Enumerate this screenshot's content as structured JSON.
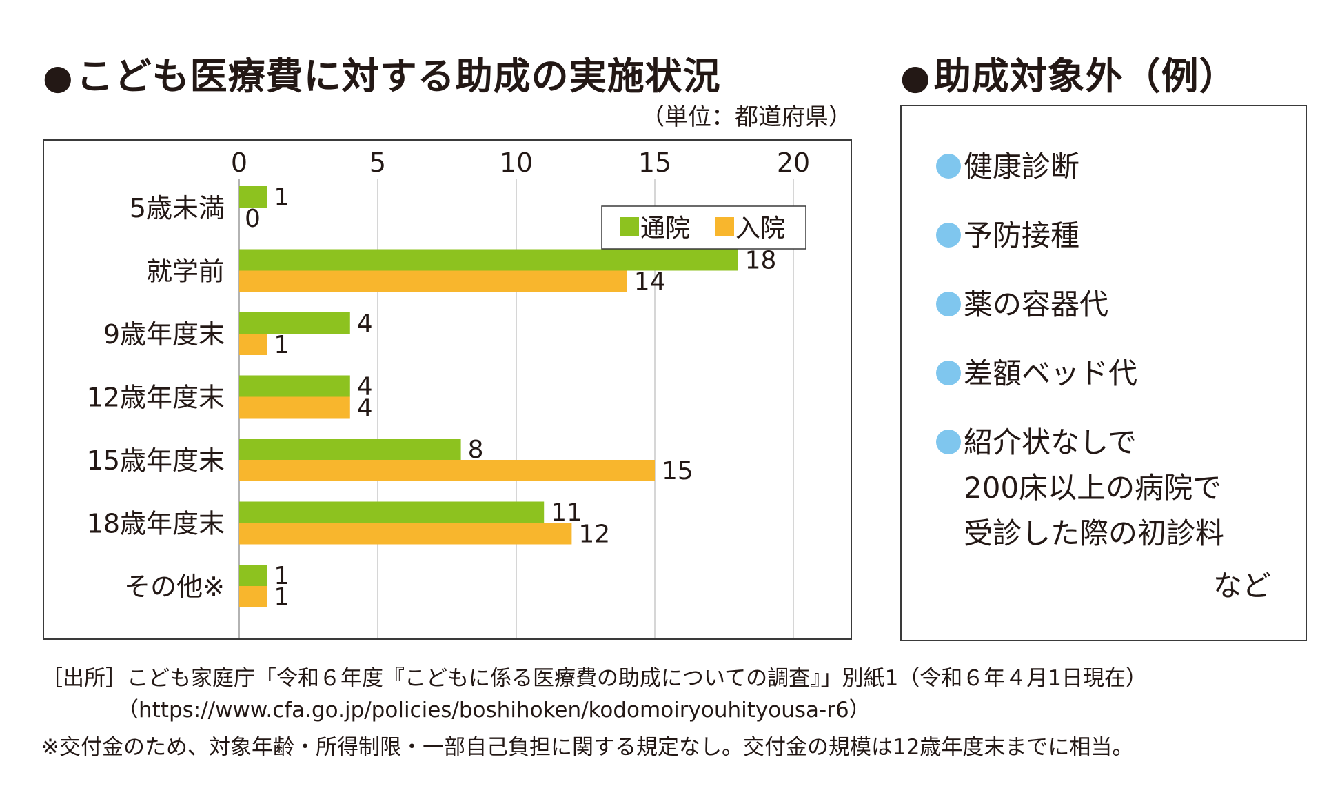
{
  "titles": {
    "chart_heading": "こども医療費に対する助成の実施状況",
    "side_heading": "助成対象外（例）",
    "bullet_mark": "●"
  },
  "unit_note": "（単位：都道府県）",
  "chart_data": {
    "type": "bar",
    "orientation": "horizontal",
    "categories": [
      "5歳未満",
      "就学前",
      "9歳年度末",
      "12歳年度末",
      "15歳年度末",
      "18歳年度末",
      "その他※"
    ],
    "series": [
      {
        "name": "通院",
        "color": "#8dc21f",
        "values": [
          1,
          18,
          4,
          4,
          8,
          11,
          1
        ]
      },
      {
        "name": "入院",
        "color": "#f8b62d",
        "values": [
          0,
          14,
          1,
          4,
          15,
          12,
          1
        ]
      }
    ],
    "xlim": [
      0,
      22
    ],
    "xticks": [
      0,
      5,
      10,
      15,
      20
    ],
    "xaxis_position": "top",
    "grid": true,
    "legend_position": "top-right",
    "data_labels": true
  },
  "exclusions": {
    "items": [
      {
        "lines": [
          "健康診断"
        ]
      },
      {
        "lines": [
          "予防接種"
        ]
      },
      {
        "lines": [
          "薬の容器代"
        ]
      },
      {
        "lines": [
          "差額ベッド代"
        ]
      },
      {
        "lines": [
          "紹介状なしで",
          "200床以上の病院で",
          "受診した際の初診料"
        ]
      }
    ],
    "suffix": "など",
    "bullet_color": "#7fc6ee"
  },
  "source": {
    "line1": "［出所］こども家庭庁「令和６年度『こどもに係る医療費の助成についての調査』」別紙1（令和６年４月1日現在）",
    "line2": "（https://www.cfa.go.jp/policies/boshihoken/kodomoiryouhityousa-r6）"
  },
  "footnote": "※交付金のため、対象年齢・所得制限・一部自己負担に関する規定なし。交付金の規模は12歳年度末までに相当。"
}
